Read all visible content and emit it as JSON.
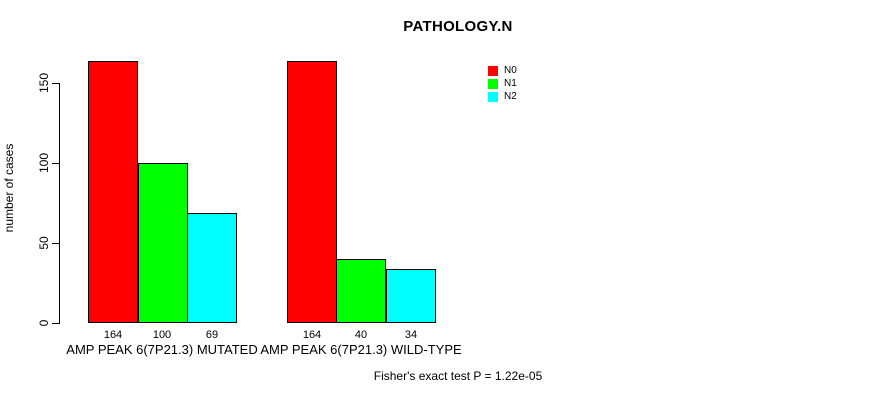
{
  "title": "PATHOLOGY.N",
  "y_axis": {
    "label": "number of cases",
    "ticks": [
      0,
      50,
      100,
      150
    ]
  },
  "legend": {
    "items": [
      {
        "label": "N0",
        "color": "#ff0000"
      },
      {
        "label": "N1",
        "color": "#00ff00"
      },
      {
        "label": "N2",
        "color": "#00ffff"
      }
    ]
  },
  "footnote": "Fisher's exact test P = 1.22e-05",
  "chart_data": {
    "type": "bar",
    "title": "PATHOLOGY.N",
    "xlabel": "",
    "ylabel": "number of cases",
    "ylim": [
      0,
      164
    ],
    "yticks": [
      0,
      50,
      100,
      150
    ],
    "grid": false,
    "legend_position": "top-right",
    "categories": [
      "AMP PEAK 6(7P21.3) MUTATED",
      "AMP PEAK 6(7P21.3) WILD-TYPE"
    ],
    "series": [
      {
        "name": "N0",
        "color": "#ff0000",
        "values": [
          164,
          164
        ]
      },
      {
        "name": "N1",
        "color": "#00ff00",
        "values": [
          100,
          40
        ]
      },
      {
        "name": "N2",
        "color": "#00ffff",
        "values": [
          69,
          34
        ]
      }
    ],
    "bar_value_labels": [
      [
        164,
        100,
        69
      ],
      [
        164,
        40,
        34
      ]
    ],
    "annotation": "Fisher's exact test P = 1.22e-05"
  }
}
